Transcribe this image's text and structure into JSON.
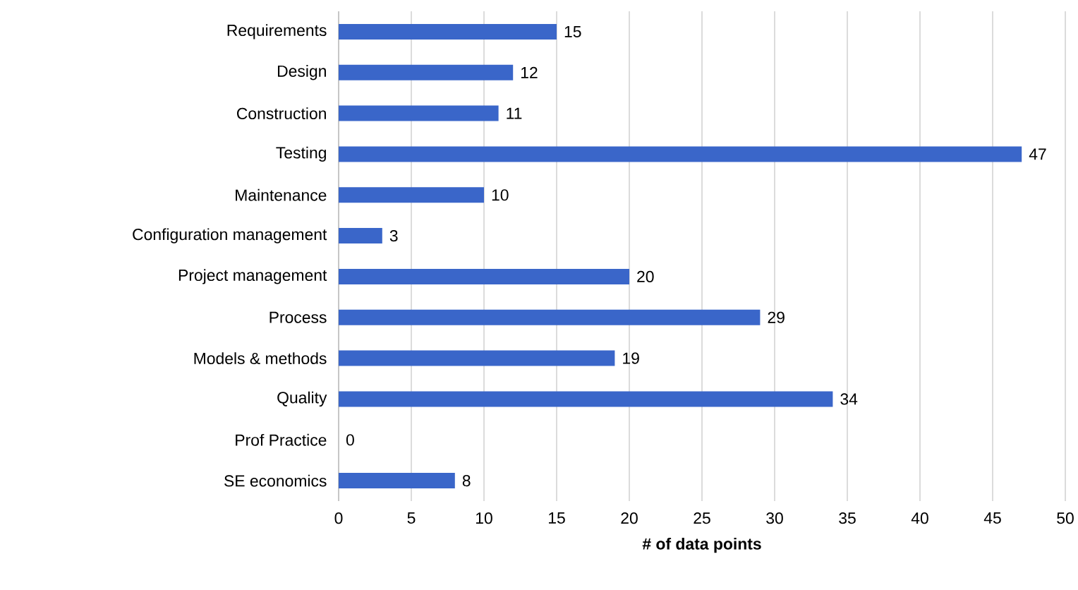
{
  "chart_data": {
    "type": "bar",
    "orientation": "horizontal",
    "xlabel": "# of data points",
    "categories": [
      "Requirements",
      "Design",
      "Construction",
      "Testing",
      "Maintenance",
      "Configuration management",
      "Project management",
      "Process",
      "Models & methods",
      "Quality",
      "Prof Practice",
      "SE economics"
    ],
    "values": [
      15,
      12,
      11,
      47,
      10,
      3,
      20,
      29,
      19,
      34,
      0,
      8
    ],
    "color": "#3a66c9",
    "xlim": [
      0,
      50
    ],
    "xticks": [
      0,
      5,
      10,
      15,
      20,
      25,
      30,
      35,
      40,
      45,
      50
    ],
    "grid": "x",
    "data_labels": true
  }
}
